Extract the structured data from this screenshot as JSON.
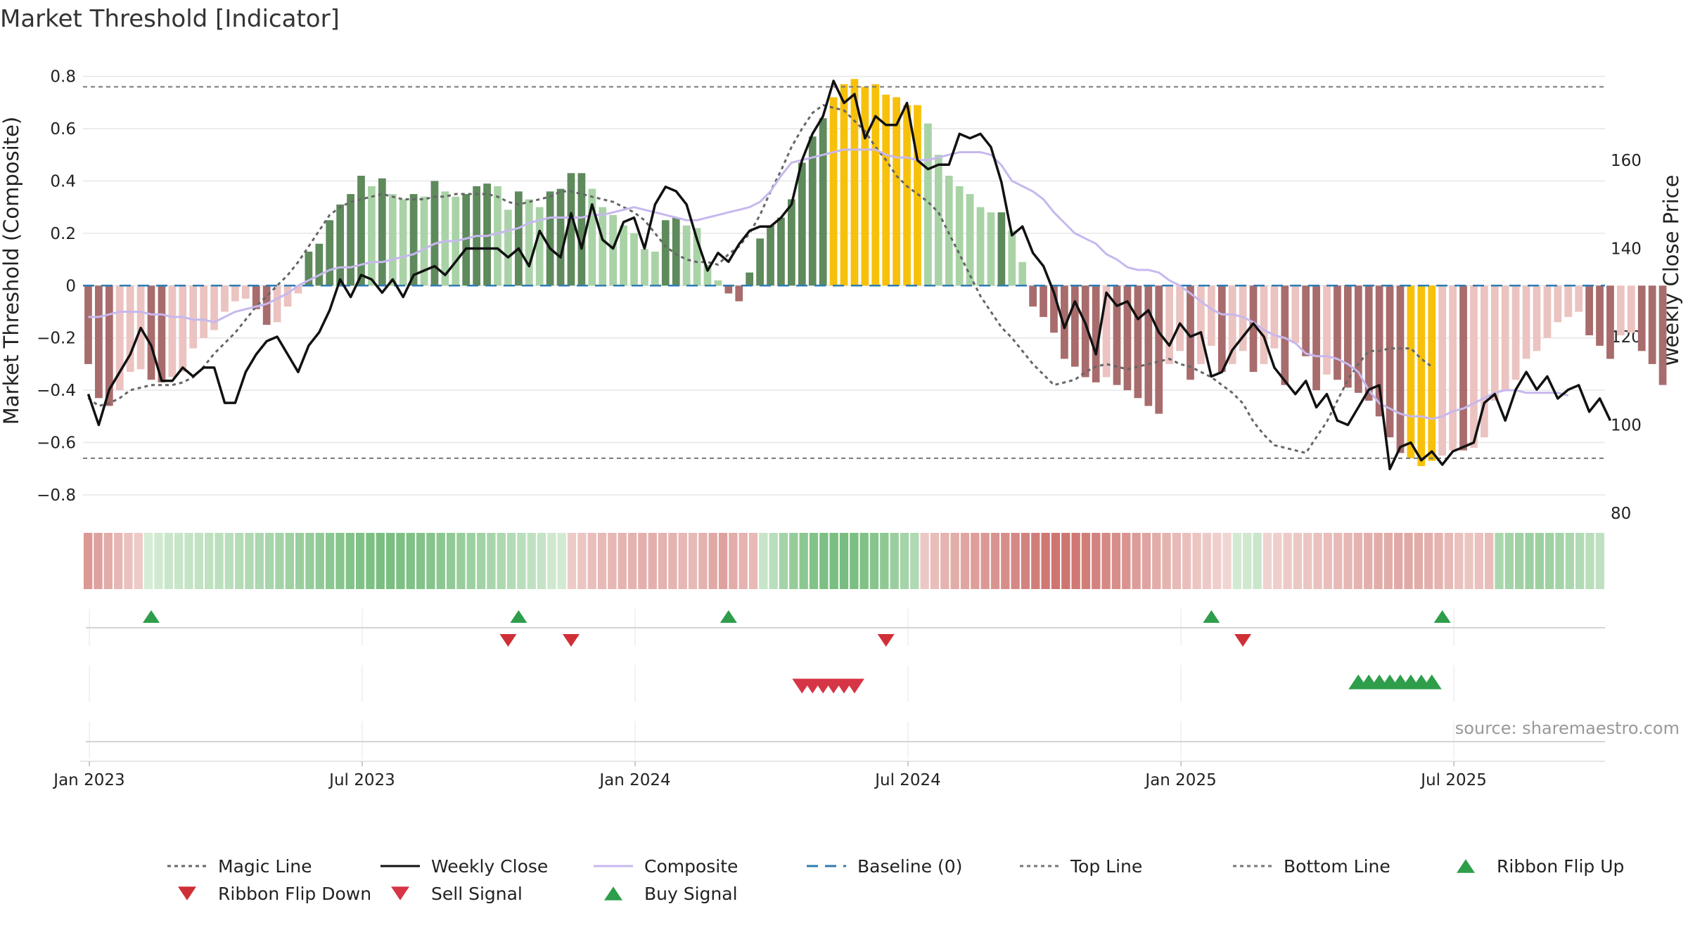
{
  "title": "Market Threshold [Indicator]",
  "source": "source: sharemaestro.com",
  "colors": {
    "strong_pos": "#5e8a5c",
    "weak_pos": "#a9d3a6",
    "strong_neg": "#a86c6c",
    "weak_neg": "#ebc3c0",
    "extreme": "#f7c10b",
    "weekly_close": "#111111",
    "composite": "#c7b8ee",
    "magic": "#666666",
    "baseline": "#2e7bb3",
    "threshold": "#777777",
    "buy": "#2e9e4a",
    "sell": "#d63545",
    "flip_down": "#cf2f36",
    "grid": "#e6e6e6"
  },
  "chart_data": {
    "type": "bar",
    "title": "Market Threshold [Indicator]",
    "y_left_label": "Market Threshold (Composite)",
    "y_right_label": "Weekly Close Price",
    "y_left_ticks": [
      "0.8",
      "0.6",
      "0.4",
      "0.2",
      "0",
      "−0.2",
      "−0.4",
      "−0.6",
      "−0.8"
    ],
    "y_left_tick_values": [
      0.8,
      0.6,
      0.4,
      0.2,
      0,
      -0.2,
      -0.4,
      -0.6,
      -0.8
    ],
    "y_left_range": [
      -0.87,
      0.85
    ],
    "y_right_ticks": [
      "160",
      "140",
      "120",
      "100",
      "80"
    ],
    "y_right_tick_values": [
      160,
      140,
      120,
      100,
      80
    ],
    "y_right_range": [
      80,
      182
    ],
    "x_ticks": [
      "Jan 2023",
      "Jul 2023",
      "Jan 2024",
      "Jul 2024",
      "Jan 2025",
      "Jul 2025"
    ],
    "x_tick_weeks": [
      0.6,
      26.6,
      52.6,
      78.6,
      104.6,
      130.6
    ],
    "week_count": 145,
    "top_line": 0.76,
    "bottom_line": -0.66,
    "grid": true,
    "legend_position": "bottom",
    "series": [
      {
        "name": "Composite (bars)",
        "values": [
          -0.3,
          -0.43,
          -0.46,
          -0.4,
          -0.33,
          -0.32,
          -0.36,
          -0.37,
          -0.35,
          -0.33,
          -0.24,
          -0.2,
          -0.17,
          -0.1,
          -0.06,
          -0.05,
          -0.09,
          -0.15,
          -0.14,
          -0.08,
          -0.03,
          0.13,
          0.16,
          0.25,
          0.31,
          0.35,
          0.42,
          0.38,
          0.41,
          0.35,
          0.33,
          0.35,
          0.34,
          0.4,
          0.36,
          0.34,
          0.35,
          0.38,
          0.39,
          0.38,
          0.29,
          0.36,
          0.33,
          0.3,
          0.36,
          0.37,
          0.43,
          0.43,
          0.37,
          0.3,
          0.27,
          0.23,
          0.2,
          0.14,
          0.13,
          0.25,
          0.26,
          0.23,
          0.22,
          0.08,
          0.02,
          -0.03,
          -0.06,
          0.05,
          0.18,
          0.23,
          0.26,
          0.33,
          0.47,
          0.57,
          0.64,
          0.72,
          0.77,
          0.79,
          0.76,
          0.77,
          0.73,
          0.72,
          0.69,
          0.69,
          0.62,
          0.5,
          0.42,
          0.38,
          0.35,
          0.3,
          0.28,
          0.28,
          0.21,
          0.09,
          -0.08,
          -0.12,
          -0.18,
          -0.28,
          -0.31,
          -0.35,
          -0.37,
          -0.35,
          -0.38,
          -0.4,
          -0.43,
          -0.46,
          -0.49,
          -0.3,
          -0.25,
          -0.36,
          -0.3,
          -0.23,
          -0.33,
          -0.3,
          -0.25,
          -0.33,
          -0.3,
          -0.24,
          -0.38,
          -0.22,
          -0.27,
          -0.4,
          -0.34,
          -0.36,
          -0.39,
          -0.41,
          -0.44,
          -0.5,
          -0.58,
          -0.64,
          -0.66,
          -0.69,
          -0.67,
          -0.65,
          -0.63,
          -0.63,
          -0.62,
          -0.58,
          -0.44,
          -0.4,
          -0.36,
          -0.28,
          -0.25,
          -0.2,
          -0.14,
          -0.12,
          -0.1,
          -0.19,
          -0.23,
          -0.28,
          -0.19,
          -0.18,
          -0.25,
          -0.3,
          -0.38
        ]
      },
      {
        "name": "Weekly Close",
        "values": [
          107,
          100,
          108,
          112,
          116,
          122,
          118,
          110,
          110,
          113,
          111,
          113,
          113,
          105,
          105,
          112,
          116,
          119,
          120,
          116,
          112,
          118,
          121,
          126,
          133,
          129,
          134,
          133,
          130,
          133,
          129,
          134,
          135,
          136,
          134,
          137,
          140,
          140,
          140,
          140,
          138,
          140,
          136,
          144,
          140,
          138,
          148,
          140,
          150,
          142,
          140,
          146,
          147,
          140,
          150,
          154,
          153,
          150,
          142,
          135,
          139,
          137,
          141,
          144,
          145,
          145,
          147,
          150,
          160,
          166,
          170,
          178,
          173,
          175,
          165,
          170,
          168,
          168,
          173,
          160,
          158,
          159,
          159,
          166,
          165,
          166,
          163,
          155,
          143,
          145,
          139,
          136,
          130,
          122,
          128,
          123,
          116,
          130,
          127,
          128,
          124,
          126,
          121,
          118,
          123,
          120,
          121,
          111,
          112,
          117,
          120,
          123,
          120,
          113,
          110,
          107,
          110,
          104,
          107,
          101,
          100,
          104,
          108,
          109,
          90,
          95,
          96,
          92,
          94,
          91,
          94,
          95,
          96,
          105,
          107,
          101,
          108,
          112,
          108,
          111,
          106,
          108,
          109,
          103,
          106,
          101
        ]
      },
      {
        "name": "Composite",
        "values": [
          -0.12,
          -0.12,
          -0.11,
          -0.1,
          -0.1,
          -0.1,
          -0.11,
          -0.11,
          -0.12,
          -0.12,
          -0.13,
          -0.13,
          -0.14,
          -0.12,
          -0.1,
          -0.09,
          -0.08,
          -0.07,
          -0.05,
          -0.03,
          0.0,
          0.02,
          0.04,
          0.06,
          0.07,
          0.07,
          0.08,
          0.09,
          0.09,
          0.1,
          0.11,
          0.12,
          0.14,
          0.16,
          0.17,
          0.17,
          0.18,
          0.19,
          0.19,
          0.2,
          0.21,
          0.22,
          0.24,
          0.25,
          0.26,
          0.26,
          0.26,
          0.26,
          0.27,
          0.27,
          0.28,
          0.29,
          0.3,
          0.29,
          0.28,
          0.27,
          0.26,
          0.25,
          0.25,
          0.26,
          0.27,
          0.28,
          0.29,
          0.3,
          0.32,
          0.36,
          0.42,
          0.47,
          0.48,
          0.49,
          0.5,
          0.51,
          0.52,
          0.52,
          0.52,
          0.52,
          0.5,
          0.49,
          0.49,
          0.48,
          0.48,
          0.49,
          0.5,
          0.51,
          0.51,
          0.51,
          0.5,
          0.46,
          0.4,
          0.38,
          0.36,
          0.33,
          0.28,
          0.24,
          0.2,
          0.18,
          0.16,
          0.12,
          0.1,
          0.07,
          0.06,
          0.06,
          0.05,
          0.02,
          0.0,
          -0.03,
          -0.06,
          -0.09,
          -0.11,
          -0.11,
          -0.12,
          -0.14,
          -0.17,
          -0.19,
          -0.2,
          -0.22,
          -0.26,
          -0.27,
          -0.27,
          -0.28,
          -0.3,
          -0.33,
          -0.4,
          -0.45,
          -0.47,
          -0.49,
          -0.5,
          -0.5,
          -0.51,
          -0.5,
          -0.48,
          -0.47,
          -0.45,
          -0.43,
          -0.41,
          -0.4,
          -0.4,
          -0.41,
          -0.41,
          -0.41,
          -0.41,
          -0.42
        ]
      },
      {
        "name": "Magic Line",
        "values": [
          -0.43,
          -0.46,
          -0.45,
          -0.43,
          -0.4,
          -0.39,
          -0.38,
          -0.38,
          -0.38,
          -0.37,
          -0.35,
          -0.31,
          -0.26,
          -0.22,
          -0.18,
          -0.13,
          -0.08,
          -0.04,
          0.0,
          0.04,
          0.09,
          0.15,
          0.21,
          0.27,
          0.3,
          0.32,
          0.33,
          0.34,
          0.35,
          0.34,
          0.33,
          0.33,
          0.33,
          0.34,
          0.34,
          0.35,
          0.35,
          0.35,
          0.35,
          0.34,
          0.32,
          0.31,
          0.32,
          0.33,
          0.34,
          0.36,
          0.36,
          0.35,
          0.34,
          0.33,
          0.32,
          0.3,
          0.28,
          0.25,
          0.2,
          0.15,
          0.12,
          0.1,
          0.09,
          0.09,
          0.08,
          0.12,
          0.15,
          0.2,
          0.27,
          0.36,
          0.44,
          0.53,
          0.6,
          0.66,
          0.69,
          0.68,
          0.67,
          0.63,
          0.59,
          0.53,
          0.48,
          0.42,
          0.38,
          0.35,
          0.32,
          0.28,
          0.2,
          0.12,
          0.04,
          -0.04,
          -0.1,
          -0.16,
          -0.2,
          -0.25,
          -0.3,
          -0.34,
          -0.38,
          -0.37,
          -0.36,
          -0.33,
          -0.31,
          -0.3,
          -0.31,
          -0.32,
          -0.31,
          -0.3,
          -0.29,
          -0.28,
          -0.3,
          -0.31,
          -0.33,
          -0.35,
          -0.38,
          -0.41,
          -0.45,
          -0.52,
          -0.57,
          -0.61,
          -0.62,
          -0.63,
          -0.64,
          -0.58,
          -0.52,
          -0.44,
          -0.36,
          -0.3,
          -0.25,
          -0.25,
          -0.24,
          -0.24,
          -0.24,
          -0.28,
          -0.31
        ]
      }
    ],
    "ribbon_scores": [
      -0.55,
      -0.48,
      -0.4,
      -0.32,
      -0.25,
      -0.18,
      0.1,
      0.14,
      0.18,
      0.2,
      0.22,
      0.24,
      0.26,
      0.28,
      0.3,
      0.33,
      0.36,
      0.39,
      0.42,
      0.45,
      0.48,
      0.52,
      0.55,
      0.58,
      0.62,
      0.65,
      0.68,
      0.7,
      0.72,
      0.74,
      0.74,
      0.72,
      0.7,
      0.68,
      0.66,
      0.62,
      0.58,
      0.54,
      0.5,
      0.46,
      0.42,
      0.38,
      0.34,
      0.3,
      0.26,
      0.22,
      0.15,
      0.12,
      -0.18,
      -0.22,
      -0.26,
      -0.3,
      -0.32,
      -0.34,
      -0.36,
      -0.38,
      -0.38,
      -0.36,
      -0.34,
      -0.32,
      -0.3,
      -0.36,
      -0.42,
      -0.48,
      -0.4,
      -0.35,
      -0.3,
      0.2,
      0.3,
      0.45,
      0.55,
      0.62,
      0.68,
      0.72,
      0.74,
      0.75,
      0.73,
      0.7,
      0.65,
      0.6,
      0.52,
      0.44,
      0.36,
      -0.2,
      -0.28,
      -0.35,
      -0.4,
      -0.45,
      -0.5,
      -0.55,
      -0.58,
      -0.62,
      -0.66,
      -0.7,
      -0.74,
      -0.78,
      -0.8,
      -0.8,
      -0.78,
      -0.74,
      -0.7,
      -0.66,
      -0.62,
      -0.58,
      -0.52,
      -0.46,
      -0.4,
      -0.35,
      -0.3,
      -0.26,
      -0.22,
      -0.18,
      -0.15,
      -0.1,
      0.12,
      0.15,
      0.18,
      -0.12,
      -0.15,
      -0.18,
      -0.2,
      -0.22,
      -0.25,
      -0.27,
      -0.3,
      -0.32,
      -0.35,
      -0.38,
      -0.4,
      -0.4,
      -0.42,
      -0.42,
      -0.4,
      -0.38,
      -0.35,
      -0.3,
      -0.25,
      -0.22,
      -0.25,
      -0.28,
      0.4,
      0.45,
      0.48,
      0.5,
      0.5,
      0.48,
      0.45,
      0.4,
      0.35,
      0.3,
      0.25
    ],
    "ribbon_flip_up_weeks": [
      6.5,
      41.5,
      61.5,
      107.5,
      129.5
    ],
    "ribbon_flip_down_weeks": [
      40.5,
      46.5,
      76.5,
      110.5
    ],
    "sell_signal_weeks": [
      68,
      69,
      70,
      71,
      72,
      73
    ],
    "buy_signal_weeks": [
      121,
      122,
      123,
      124,
      125,
      126,
      127,
      128
    ]
  },
  "legend": [
    {
      "label": "Magic Line",
      "icon": "dotted-line",
      "color": "#666666"
    },
    {
      "label": "Weekly Close",
      "icon": "solid-line",
      "color": "#111111"
    },
    {
      "label": "Composite",
      "icon": "solid-line",
      "color": "#c7b8ee"
    },
    {
      "label": "Baseline (0)",
      "icon": "dashed-line",
      "color": "#2e7bb3"
    },
    {
      "label": "Top Line",
      "icon": "dotted-line",
      "color": "#777777"
    },
    {
      "label": "Bottom Line",
      "icon": "dotted-line",
      "color": "#777777"
    },
    {
      "label": "Ribbon Flip Up",
      "icon": "triangle-up",
      "color": "#2e9e4a"
    },
    {
      "label": "Ribbon Flip Down",
      "icon": "triangle-down",
      "color": "#cf2f36"
    },
    {
      "label": "Sell Signal",
      "icon": "triangle-down",
      "color": "#d63545"
    },
    {
      "label": "Buy Signal",
      "icon": "triangle-up",
      "color": "#2e9e4a"
    }
  ]
}
